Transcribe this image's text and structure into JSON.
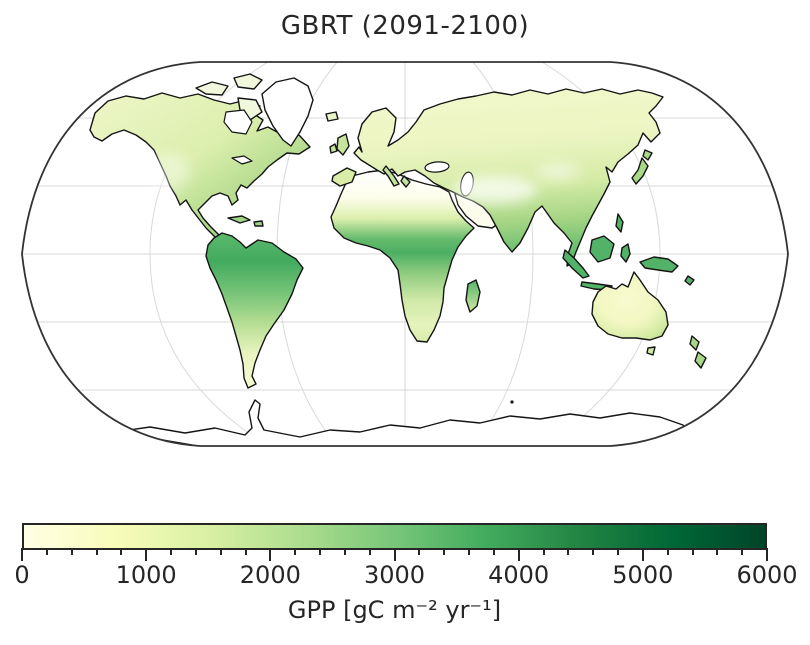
{
  "figure": {
    "title": "GBRT (2091-2100)",
    "background_color": "#ffffff",
    "text_color": "#262626"
  },
  "map": {
    "projection": "Robinson",
    "coastline_color": "#141414",
    "outline_color": "#333333",
    "gridline_color": "#d9d9d9",
    "ocean_color": "#ffffff",
    "no_data_land_color": "#ffffff",
    "graticule": {
      "parallel_spacing_deg": 30,
      "meridian_spacing_deg": 60
    }
  },
  "colorbar": {
    "label": "GPP [gC m⁻² yr⁻¹]",
    "orientation": "horizontal",
    "vmin": 0,
    "vmax": 6000,
    "major_ticks": [
      0,
      1000,
      2000,
      3000,
      4000,
      5000,
      6000
    ],
    "minor_tick_step": 200,
    "colormap": "YlGn",
    "colormap_stops": [
      "#ffffe5",
      "#f7fcb9",
      "#d9f0a3",
      "#addd8e",
      "#78c679",
      "#41ab5d",
      "#238443",
      "#006837",
      "#004529"
    ],
    "outline_color": "#262626",
    "tick_color": "#262626"
  },
  "chart_data": {
    "type": "heatmap",
    "title": "GBRT (2091-2100)",
    "variable": "GPP",
    "units": "gC m⁻² yr⁻¹",
    "colorbar_label": "GPP [gC m⁻² yr⁻¹]",
    "colormap": "YlGn",
    "value_range": [
      0,
      6000
    ],
    "colorbar_ticks": [
      0,
      1000,
      2000,
      3000,
      4000,
      5000,
      6000
    ],
    "minor_tick_step": 200,
    "projection": "Robinson",
    "gridlines": true,
    "regions_approx_gpp": [
      {
        "region": "Amazon basin",
        "gpp": 3200
      },
      {
        "region": "Congo basin / central Africa",
        "gpp": 3000
      },
      {
        "region": "Indonesia / New Guinea / Southeast Asia",
        "gpp": 3000
      },
      {
        "region": "Central America / Caribbean coast",
        "gpp": 2600
      },
      {
        "region": "Southeastern United States",
        "gpp": 1800
      },
      {
        "region": "Eastern China",
        "gpp": 1800
      },
      {
        "region": "India",
        "gpp": 1400
      },
      {
        "region": "Europe",
        "gpp": 1200
      },
      {
        "region": "Boreal North America / Siberia",
        "gpp": 700
      },
      {
        "region": "Southern South America",
        "gpp": 700
      },
      {
        "region": "Central Australia",
        "gpp": 400
      },
      {
        "region": "Sahara / Arabia deserts",
        "gpp": 0
      },
      {
        "region": "Greenland / Antarctica",
        "gpp": null
      }
    ]
  }
}
